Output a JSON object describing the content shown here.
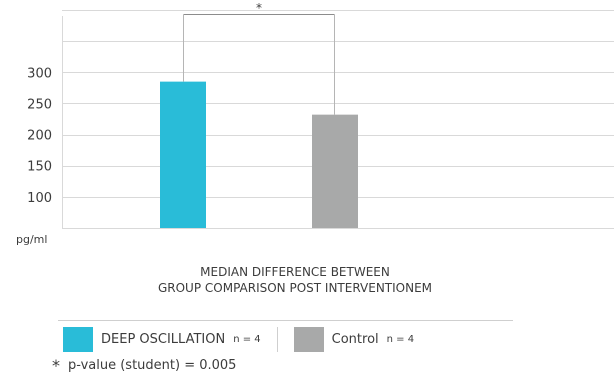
{
  "chart_data": {
    "type": "bar",
    "categories": [
      "DEEP OSCILLATION",
      "Control"
    ],
    "values": [
      285,
      232
    ],
    "colors": [
      "#29bcd8",
      "#a8a9a9"
    ],
    "unit": "pg/ml",
    "y_ticks": [
      100,
      150,
      200,
      250,
      300
    ],
    "ylim": [
      50,
      400
    ],
    "grid": true,
    "significance": {
      "between": [
        0,
        1
      ],
      "marker": "*"
    },
    "caption": [
      "MEDIAN DIFFERENCE BETWEEN",
      "GROUP COMPARISON POST INTERVENTIONEM"
    ],
    "legend": [
      {
        "label": "DEEP OSCILLATION",
        "n": "n = 4",
        "color": "#29bcd8"
      },
      {
        "label": "Control",
        "n": "n = 4",
        "color": "#a8a9a9"
      }
    ],
    "footnote": {
      "marker": "*",
      "text": "p-value (student) = 0.005"
    }
  }
}
